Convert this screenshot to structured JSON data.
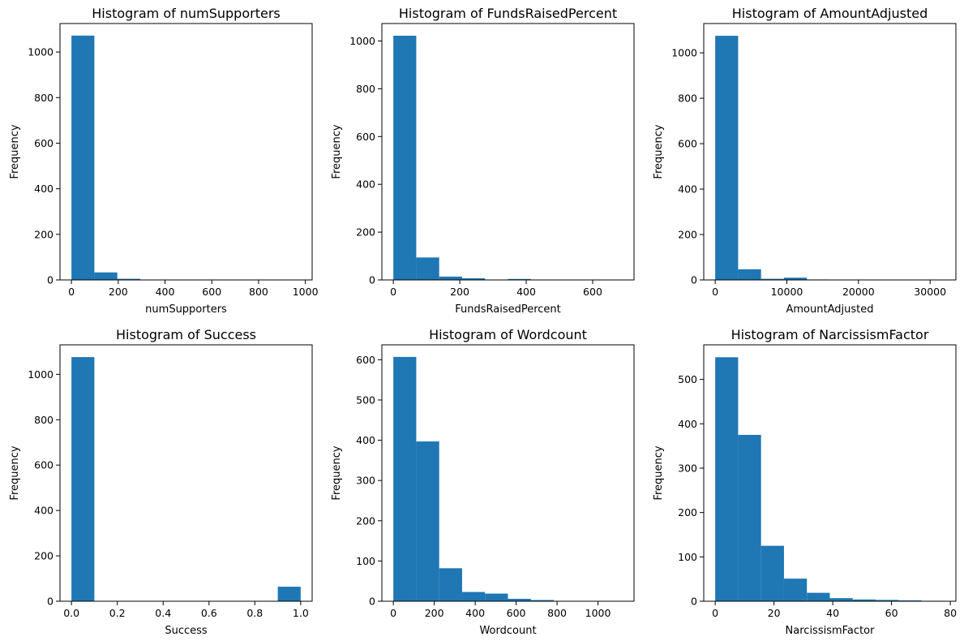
{
  "bar_color": "#1f77b4",
  "chart_data": [
    {
      "type": "bar",
      "title": "Histogram of numSupporters",
      "xlabel": "numSupporters",
      "ylabel": "Frequency",
      "bin_edges": [
        0,
        98,
        196,
        294,
        392,
        490,
        588,
        686,
        784,
        882,
        980
      ],
      "values": [
        1072,
        33,
        5,
        1,
        0,
        0,
        0,
        0,
        0,
        1
      ],
      "xlim": [
        -49,
        1029
      ],
      "ylim": [
        0,
        1125
      ],
      "xticks": [
        0,
        200,
        400,
        600,
        800,
        1000
      ],
      "xtick_labels": [
        "0",
        "200",
        "400",
        "600",
        "800",
        "1000"
      ],
      "yticks": [
        0,
        200,
        400,
        600,
        800,
        1000
      ],
      "ytick_labels": [
        "0",
        "200",
        "400",
        "600",
        "800",
        "1000"
      ]
    },
    {
      "type": "bar",
      "title": "Histogram of FundsRaisedPercent",
      "xlabel": "FundsRaisedPercent",
      "ylabel": "Frequency",
      "bin_edges": [
        0,
        69,
        138,
        207,
        276,
        345,
        414,
        483,
        552,
        621,
        690
      ],
      "values": [
        1022,
        94,
        14,
        7,
        1,
        4,
        1,
        0,
        0,
        1
      ],
      "xlim": [
        -34.5,
        724.5
      ],
      "ylim": [
        0,
        1073
      ],
      "xticks": [
        0,
        200,
        400,
        600
      ],
      "xtick_labels": [
        "0",
        "200",
        "400",
        "600"
      ],
      "yticks": [
        0,
        200,
        400,
        600,
        800,
        1000
      ],
      "ytick_labels": [
        "0",
        "200",
        "400",
        "600",
        "800",
        "1000"
      ]
    },
    {
      "type": "bar",
      "title": "Histogram of AmountAdjusted",
      "xlabel": "AmountAdjusted",
      "ylabel": "Frequency",
      "bin_edges": [
        0,
        3200,
        6400,
        9600,
        12800,
        16000,
        19200,
        22400,
        25600,
        28800,
        32000
      ],
      "values": [
        1075,
        47,
        5,
        10,
        2,
        0,
        0,
        0,
        0,
        1
      ],
      "xlim": [
        -1600,
        33600
      ],
      "ylim": [
        0,
        1129
      ],
      "xticks": [
        0,
        10000,
        20000,
        30000
      ],
      "xtick_labels": [
        "0",
        "10000",
        "20000",
        "30000"
      ],
      "yticks": [
        0,
        200,
        400,
        600,
        800,
        1000
      ],
      "ytick_labels": [
        "0",
        "200",
        "400",
        "600",
        "800",
        "1000"
      ]
    },
    {
      "type": "bar",
      "title": "Histogram of Success",
      "xlabel": "Success",
      "ylabel": "Frequency",
      "bin_edges": [
        0,
        0.1,
        0.2,
        0.3,
        0.4,
        0.5,
        0.6,
        0.7,
        0.8,
        0.9,
        1.0
      ],
      "values": [
        1076,
        0,
        0,
        0,
        0,
        0,
        0,
        0,
        0,
        64
      ],
      "xlim": [
        -0.05,
        1.05
      ],
      "ylim": [
        0,
        1130
      ],
      "xticks": [
        0,
        0.2,
        0.4,
        0.6,
        0.8,
        1.0
      ],
      "xtick_labels": [
        "0.0",
        "0.2",
        "0.4",
        "0.6",
        "0.8",
        "1.0"
      ],
      "yticks": [
        0,
        200,
        400,
        600,
        800,
        1000
      ],
      "ytick_labels": [
        "0",
        "200",
        "400",
        "600",
        "800",
        "1000"
      ]
    },
    {
      "type": "bar",
      "title": "Histogram of Wordcount",
      "xlabel": "Wordcount",
      "ylabel": "Frequency",
      "bin_edges": [
        0,
        112,
        224,
        336,
        448,
        560,
        672,
        784,
        896,
        1008,
        1120
      ],
      "values": [
        607,
        397,
        82,
        23,
        19,
        6,
        3,
        1,
        1,
        1
      ],
      "xlim": [
        -56,
        1176
      ],
      "ylim": [
        0,
        637
      ],
      "xticks": [
        0,
        200,
        400,
        600,
        800,
        1000
      ],
      "xtick_labels": [
        "0",
        "200",
        "400",
        "600",
        "800",
        "1000"
      ],
      "yticks": [
        0,
        100,
        200,
        300,
        400,
        500,
        600
      ],
      "ytick_labels": [
        "0",
        "100",
        "200",
        "300",
        "400",
        "500",
        "600"
      ]
    },
    {
      "type": "bar",
      "title": "Histogram of NarcissismFactor",
      "xlabel": "NarcissismFactor",
      "ylabel": "Frequency",
      "bin_edges": [
        0,
        7.8,
        15.6,
        23.4,
        31.2,
        39.0,
        46.8,
        54.6,
        62.4,
        70.2,
        78.0
      ],
      "values": [
        550,
        375,
        125,
        51,
        19,
        7,
        4,
        3,
        2,
        1
      ],
      "xlim": [
        -3.9,
        81.9
      ],
      "ylim": [
        0,
        578
      ],
      "xticks": [
        0,
        20,
        40,
        60,
        80
      ],
      "xtick_labels": [
        "0",
        "20",
        "40",
        "60",
        "80"
      ],
      "yticks": [
        0,
        100,
        200,
        300,
        400,
        500
      ],
      "ytick_labels": [
        "0",
        "100",
        "200",
        "300",
        "400",
        "500"
      ]
    }
  ]
}
